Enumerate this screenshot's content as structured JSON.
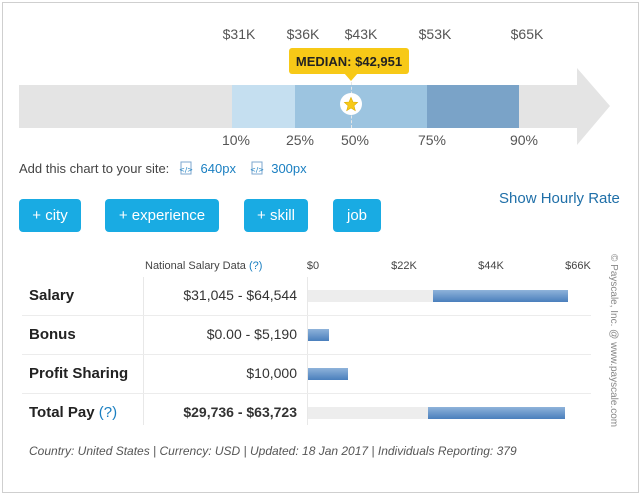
{
  "chart_data": [
    {
      "type": "bar",
      "title": "",
      "percentiles": [
        {
          "label": "10%",
          "value": 31000,
          "value_label": "$31K"
        },
        {
          "label": "25%",
          "value": 36000,
          "value_label": "$36K"
        },
        {
          "label": "50%",
          "value": 43000,
          "value_label": "$43K"
        },
        {
          "label": "75%",
          "value": 53000,
          "value_label": "$53K"
        },
        {
          "label": "90%",
          "value": 65000,
          "value_label": "$65K"
        }
      ],
      "median_label": "MEDIAN: $42,951",
      "median_value": 42951,
      "colors": [
        "#c5dff0",
        "#9cc4e0",
        "#7aa3c8",
        "#e4e4e4",
        "#f7c917"
      ]
    },
    {
      "type": "bar",
      "title": "National Salary Data",
      "x_ticks": [
        "$0",
        "$22K",
        "$44K",
        "$66K"
      ],
      "xlim": [
        0,
        66000
      ],
      "rows": [
        {
          "label": "Salary",
          "range_label": "$31,045 - $64,544",
          "low": 31045,
          "high": 64544,
          "show_bg": true
        },
        {
          "label": "Bonus",
          "range_label": "$0.00 - $5,190",
          "low": 0,
          "high": 5190,
          "show_bg": false
        },
        {
          "label": "Profit Sharing",
          "range_label": "$10,000",
          "low": 0,
          "high": 10000,
          "show_bg": false
        },
        {
          "label": "Total Pay",
          "range_label": "$29,736 - $63,723",
          "low": 29736,
          "high": 63723,
          "show_bg": true,
          "bold": true,
          "help": "(?)"
        }
      ]
    }
  ],
  "median": {
    "label": "MEDIAN: $42,951"
  },
  "share": {
    "prefix": "Add this chart to your site:",
    "link_640": "640px",
    "link_300": "300px"
  },
  "buttons": {
    "city": "+ city",
    "experience": "+ experience",
    "skill": "+ skill",
    "job": "job"
  },
  "hourly_link": "Show Hourly Rate",
  "table": {
    "header": "National Salary Data",
    "header_help": "(?)"
  },
  "footer": "Country: United States | Currency: USD | Updated: 18 Jan 2017 | Individuals Reporting: 379",
  "copyright": "© Payscale, Inc. @ www.payscale.com",
  "icons": {
    "share_icon": "code-page-icon",
    "star": "star-icon"
  }
}
